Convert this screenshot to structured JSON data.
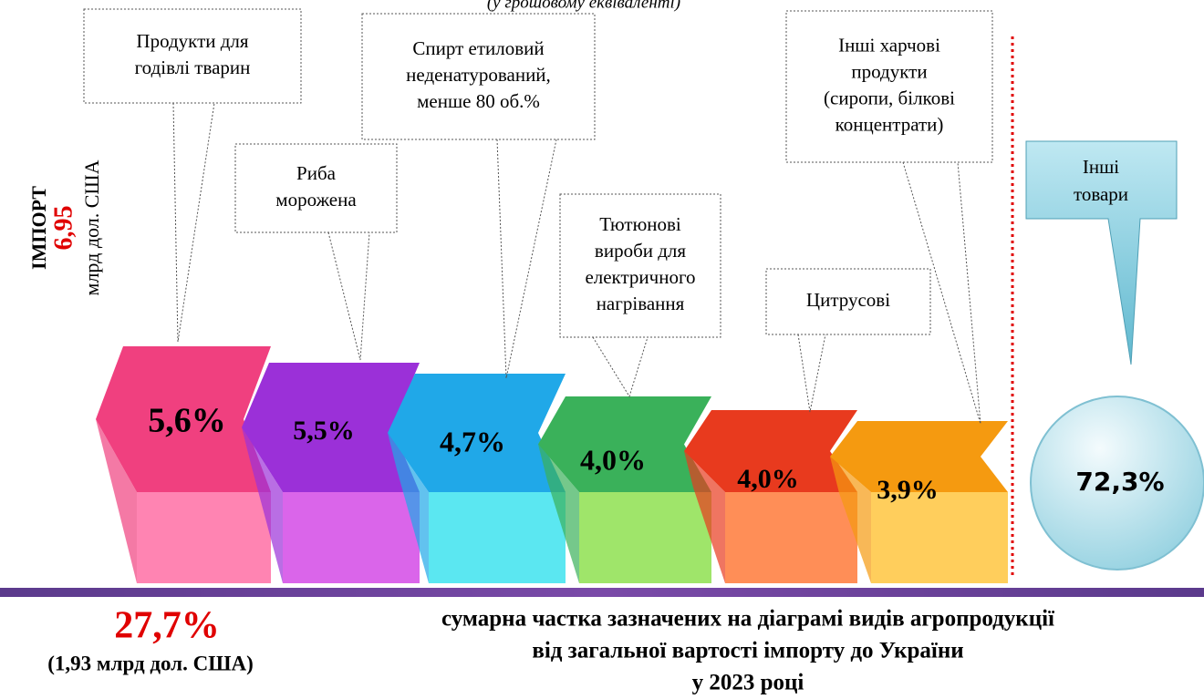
{
  "subtitle": "(у грошовому еквіваленті)",
  "import": {
    "title": "ІМПОРТ",
    "amount": "6,95",
    "unit": "млрд дол. США"
  },
  "items": [
    {
      "label": [
        "Продукти для",
        "годівлі тварин"
      ],
      "value": "5,6%"
    },
    {
      "label": [
        "Риба",
        "морожена"
      ],
      "value": "5,5%"
    },
    {
      "label": [
        "Спирт етиловий",
        "неденатурований,",
        "менше 80 об.%"
      ],
      "value": "4,7%"
    },
    {
      "label": [
        "Тютюнові",
        "вироби для",
        "електричного",
        "нагрівання"
      ],
      "value": "4,0%"
    },
    {
      "label": [
        "Цитрусові"
      ],
      "value": "4,0%"
    },
    {
      "label": [
        "Інші харчові",
        "продукти",
        "(сиропи, білкові",
        "концентрати)"
      ],
      "value": "3,9%"
    }
  ],
  "other": {
    "label": [
      "Інші",
      "товари"
    ],
    "value": "72,3%"
  },
  "summary": {
    "value": "27,7%",
    "amount": "(1,93 млрд дол. США)",
    "text": [
      "сумарна частка зазначених на діаграмі видів агропродукції",
      "від загальної вартості імпорту до України",
      "у 2023 році"
    ]
  }
}
